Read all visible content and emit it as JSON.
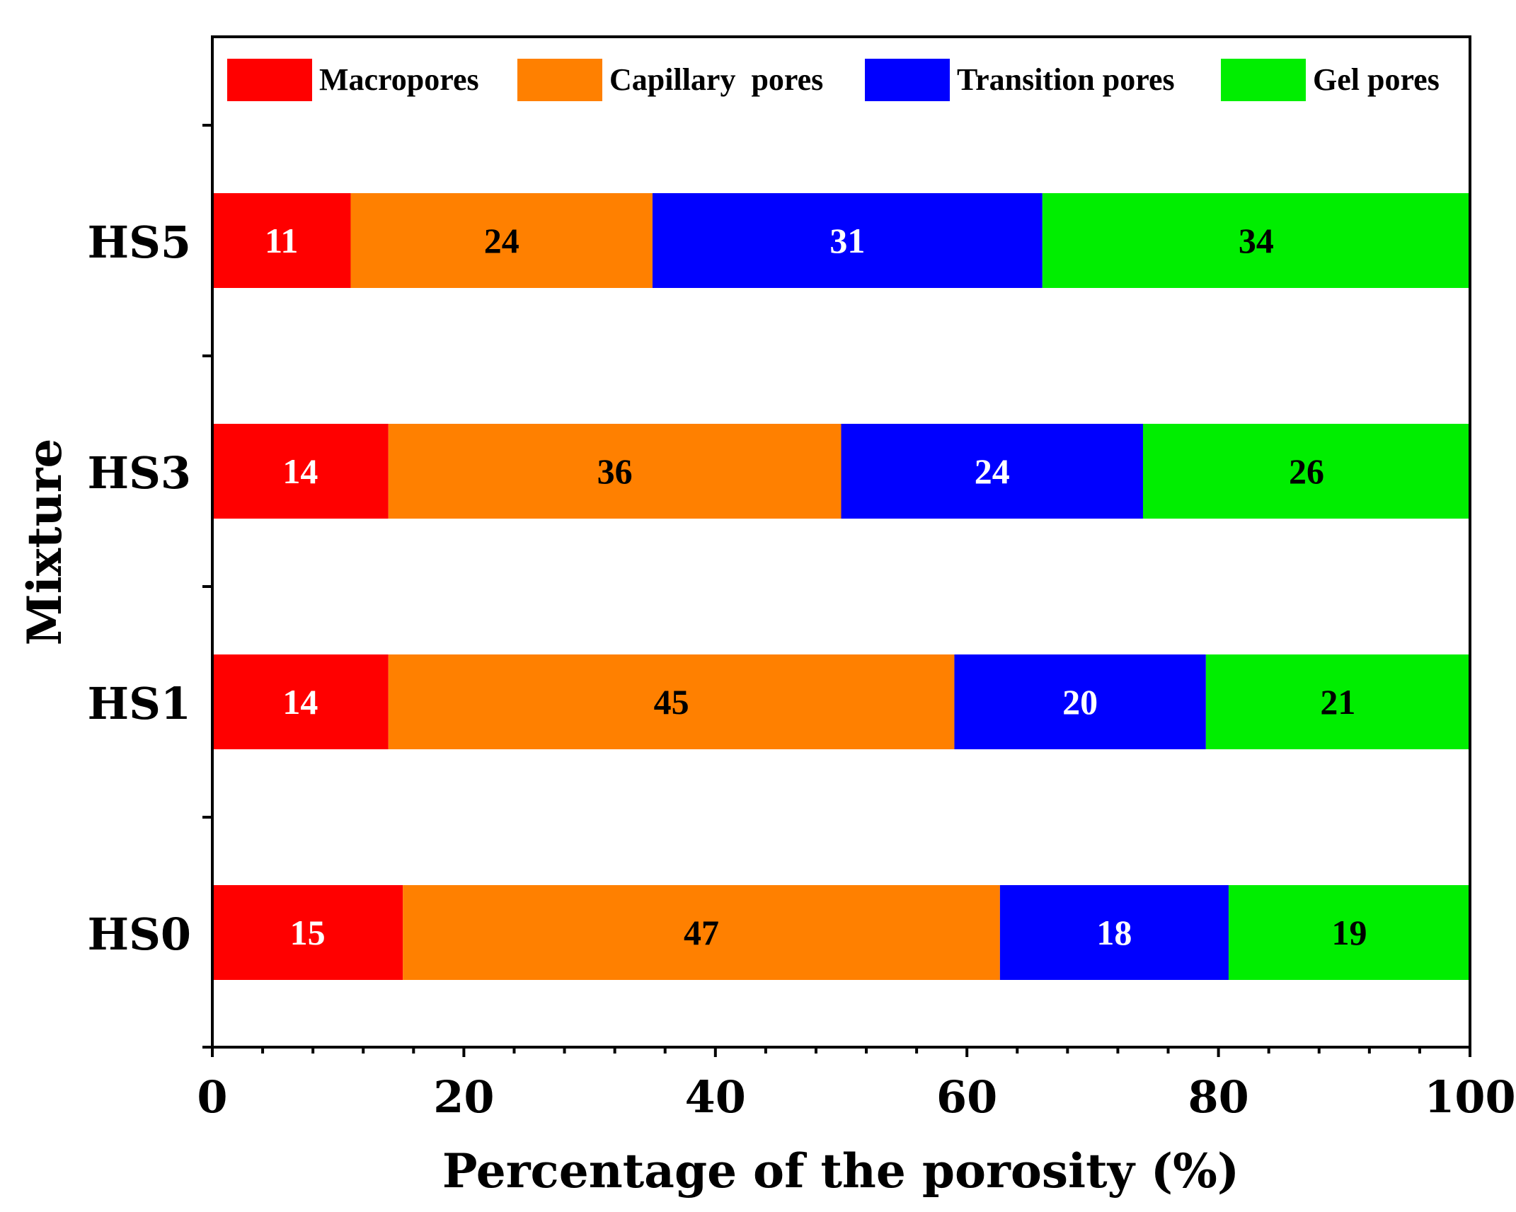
{
  "chart_data": {
    "type": "bar",
    "orientation": "horizontal",
    "stacked": true,
    "title": "",
    "xlabel": "Percentage of the porosity (%)",
    "ylabel": "Mixture",
    "xlim": [
      0,
      100
    ],
    "xticks": [
      0,
      20,
      40,
      60,
      80,
      100
    ],
    "categories": [
      "HS0",
      "HS1",
      "HS3",
      "HS5"
    ],
    "series": [
      {
        "name": "Macropores",
        "color": "#ff0000",
        "label_color": "#ffffff",
        "values": [
          15,
          14,
          14,
          11
        ]
      },
      {
        "name": "Capillary  pores",
        "color": "#ff8000",
        "label_color": "#000000",
        "values": [
          47,
          45,
          36,
          24
        ]
      },
      {
        "name": "Transition pores",
        "color": "#0000ff",
        "label_color": "#ffffff",
        "values": [
          18,
          20,
          24,
          31
        ]
      },
      {
        "name": "Gel pores",
        "color": "#00ee00",
        "label_color": "#000000",
        "values": [
          19,
          21,
          26,
          34
        ]
      }
    ],
    "legend_position": "top"
  }
}
